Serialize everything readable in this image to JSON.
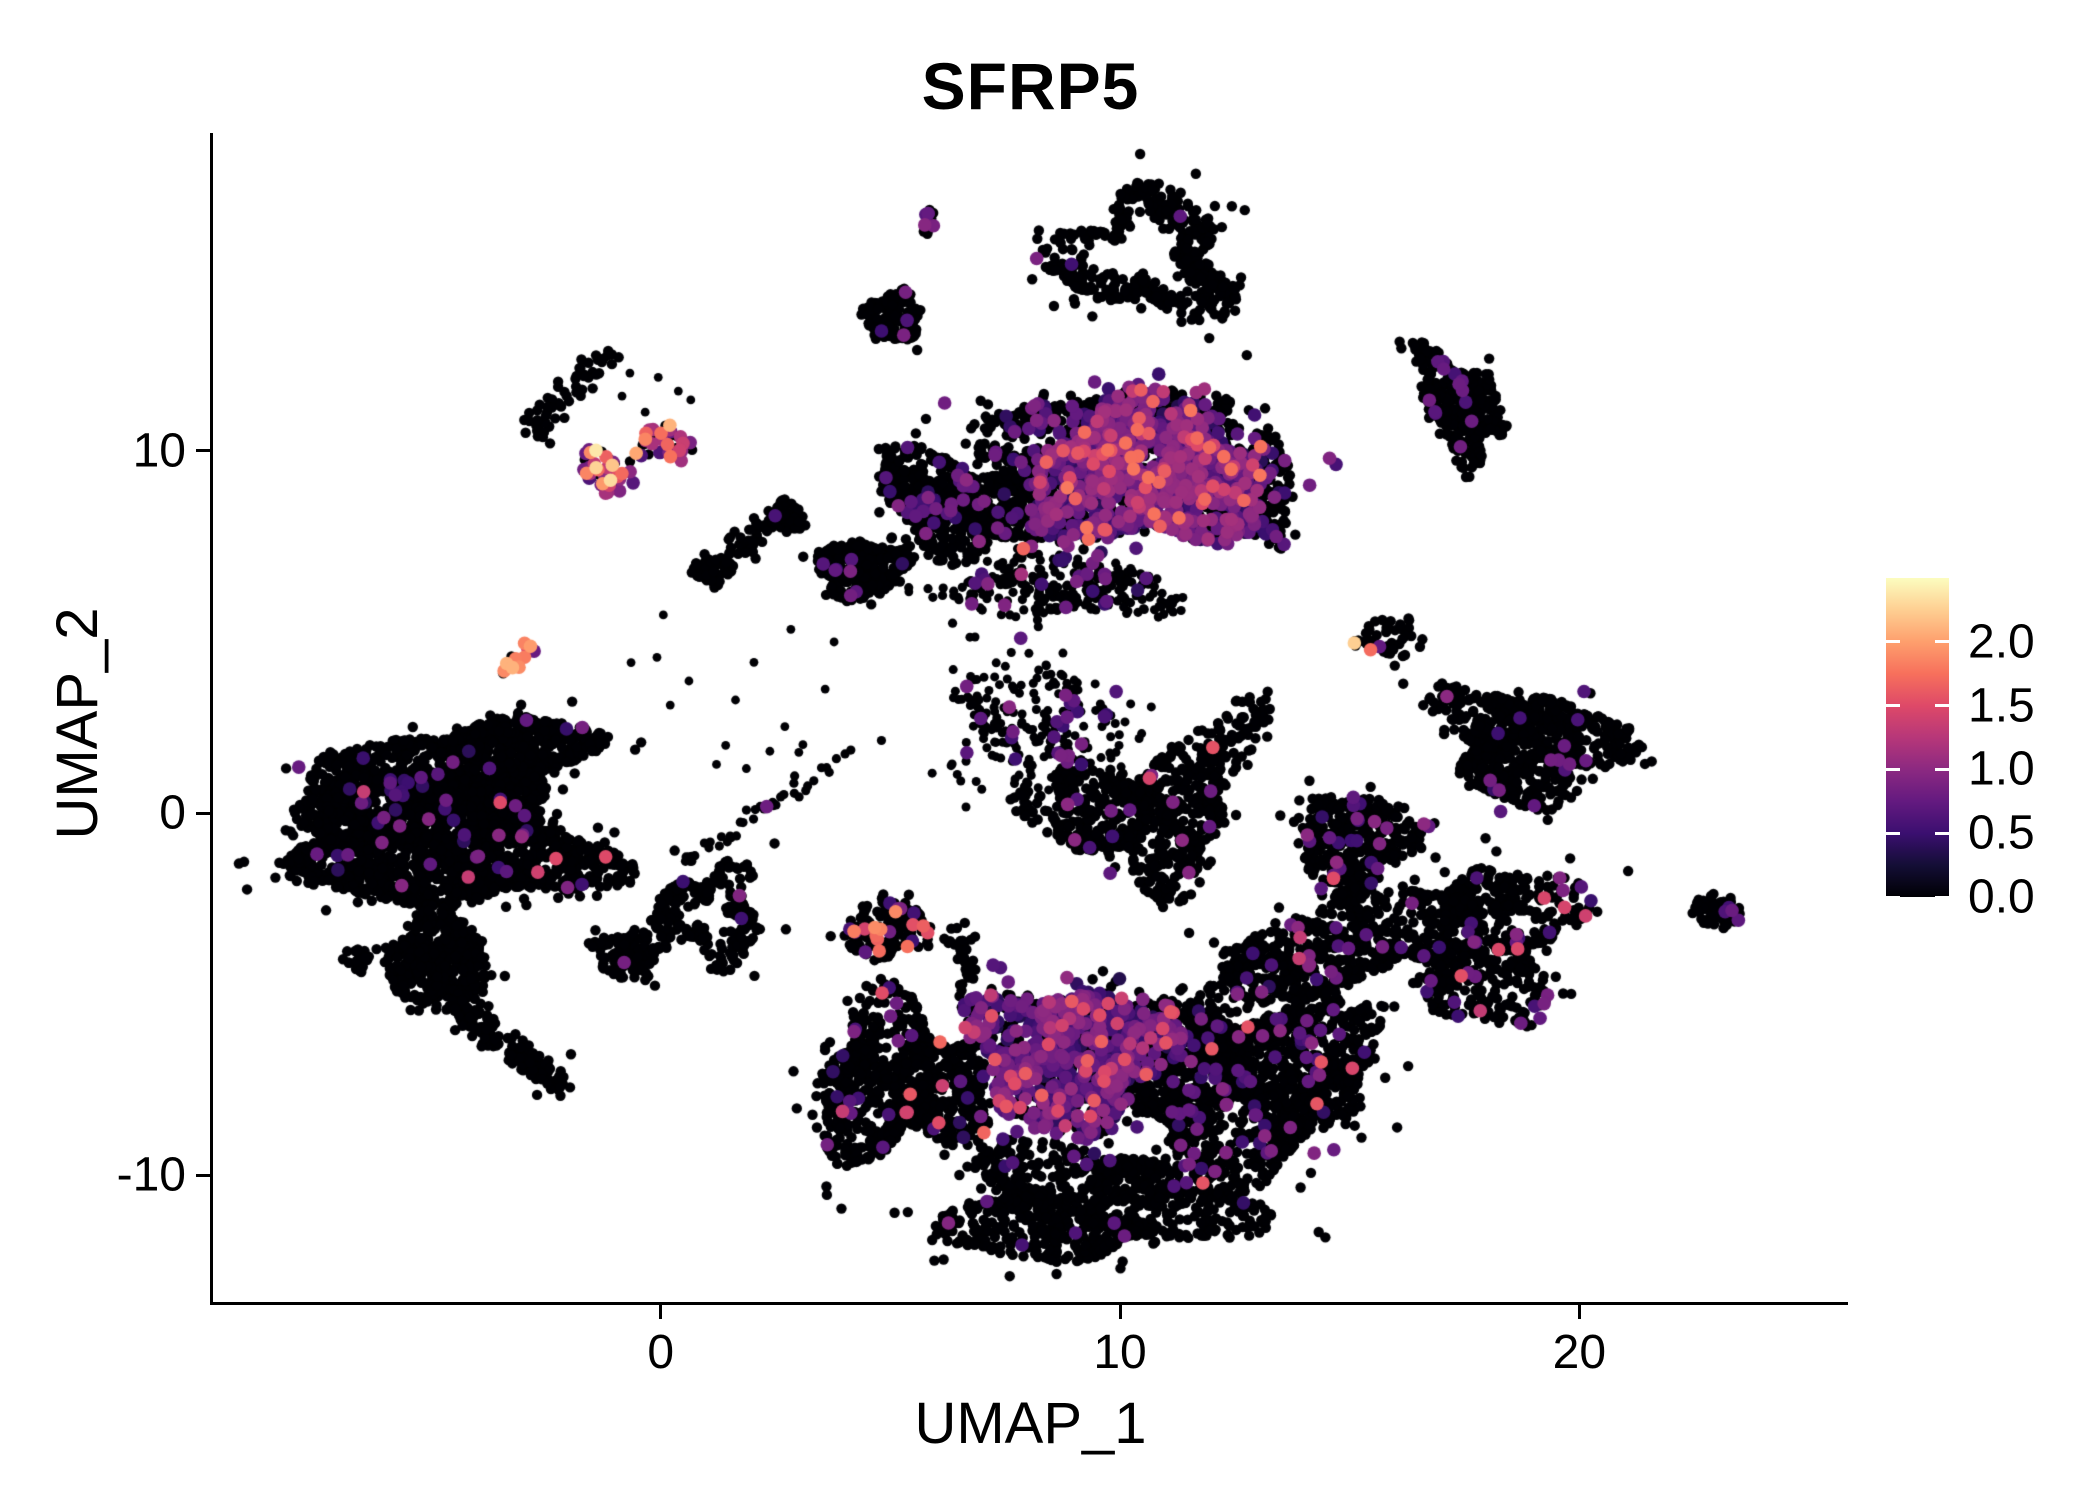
{
  "chart_data": {
    "type": "scatter",
    "subtype": "umap-feature-plot",
    "title": "SFRP5",
    "xlabel": "UMAP_1",
    "ylabel": "UMAP_2",
    "xlim": [
      -9.75,
      25.85
    ],
    "ylim": [
      -13.49,
      18.76
    ],
    "xticks": [
      0,
      10,
      20
    ],
    "xtick_labels": [
      "0",
      "10",
      "20"
    ],
    "yticks": [
      -10,
      0,
      10
    ],
    "ytick_labels": [
      "-10",
      "0",
      "10"
    ],
    "grid": false,
    "legend": {
      "position": "right",
      "vmin": 0.0,
      "vmax": 2.5,
      "ticks": [
        0.0,
        0.5,
        1.0,
        1.5,
        2.0
      ],
      "labels": [
        "0.0",
        "0.5",
        "1.0",
        "1.5",
        "2.0"
      ]
    },
    "palette": {
      "name": "magma",
      "stops": [
        "#000004",
        "#140e36",
        "#3b0f70",
        "#641a80",
        "#8c2981",
        "#b73779",
        "#de4968",
        "#f7705c",
        "#fe9f6d",
        "#fecf92",
        "#fcfdbf"
      ]
    },
    "point_style": {
      "base_radius": 5.2,
      "expressing_radius": 6.8
    },
    "seed": 7,
    "clusters": [
      {
        "id": "tiny-top",
        "shape": "blob",
        "cx": 5.85,
        "cy": 16.3,
        "rx": 0.18,
        "ry": 0.38,
        "n": 14,
        "expr": {
          "pmid": 0.2,
          "mid": [
            0.6,
            1.0
          ]
        }
      },
      {
        "id": "manta-ring",
        "shape": "ring",
        "cx": 10.5,
        "cy": 15.4,
        "rx": 1.8,
        "ry": 1.6,
        "rin": 0.45,
        "n": 430,
        "lump": [
          0.28,
          0.18
        ],
        "expr": {
          "pmid": 0.008,
          "mid": [
            0.5,
            0.9
          ]
        }
      },
      {
        "id": "manta-tail",
        "shape": "streak",
        "p1": [
          11.3,
          15.1
        ],
        "p2": [
          12.5,
          14.2
        ],
        "w": 0.22,
        "n": 70,
        "expr": {
          "pmid": 0.01,
          "mid": [
            0.5,
            0.9
          ]
        }
      },
      {
        "id": "small-c",
        "shape": "blob",
        "cx": 5.08,
        "cy": 13.7,
        "rx": 0.62,
        "ry": 0.72,
        "n": 135,
        "expr": {
          "pmid": 0.028,
          "mid": [
            0.5,
            0.95
          ]
        }
      },
      {
        "id": "right-top",
        "shape": "blob",
        "cx": 17.4,
        "cy": 11.3,
        "rx": 0.78,
        "ry": 1.5,
        "angle": 22,
        "n": 380,
        "lump": [
          0.25,
          0.18
        ],
        "expr": {
          "pmid": 0.03,
          "mid": [
            0.45,
            0.9
          ]
        }
      },
      {
        "id": "pink-a",
        "shape": "blob",
        "cx": -1.15,
        "cy": 9.5,
        "rx": 0.55,
        "ry": 0.62,
        "n": 42,
        "expr": {
          "pmid": 0.3,
          "mid": [
            0.6,
            1.2
          ],
          "phot": 0.4,
          "hot": [
            1.3,
            2.45
          ]
        }
      },
      {
        "id": "pink-b",
        "shape": "blob",
        "cx": 0.1,
        "cy": 10.2,
        "rx": 0.6,
        "ry": 0.5,
        "n": 36,
        "expr": {
          "pmid": 0.3,
          "mid": [
            0.6,
            1.2
          ],
          "phot": 0.38,
          "hot": [
            1.3,
            2.2
          ]
        }
      },
      {
        "id": "comet-streak",
        "shape": "streak",
        "p1": [
          -2.8,
          10.4
        ],
        "p2": [
          -1.2,
          12.7
        ],
        "w": 0.18,
        "n": 65,
        "expr": {}
      },
      {
        "id": "dumbbell-a",
        "shape": "blob",
        "cx": 1.15,
        "cy": 6.7,
        "rx": 0.4,
        "ry": 0.38,
        "n": 60,
        "expr": {}
      },
      {
        "id": "dumbbell-bar",
        "shape": "streak",
        "p1": [
          1.3,
          6.9
        ],
        "p2": [
          2.6,
          8.1
        ],
        "w": 0.2,
        "n": 45,
        "expr": {
          "pmid": 0.02,
          "mid": [
            0.5,
            0.9
          ]
        }
      },
      {
        "id": "dumbbell-b",
        "shape": "blob",
        "cx": 2.75,
        "cy": 8.2,
        "rx": 0.45,
        "ry": 0.4,
        "n": 65,
        "expr": {
          "pmid": 0.01,
          "mid": [
            0.5,
            0.9
          ]
        }
      },
      {
        "id": "central-head-core",
        "shape": "blob",
        "cx": 10.6,
        "cy": 9.3,
        "rx": 2.55,
        "ry": 1.95,
        "n": 1550,
        "lump": [
          0.2,
          0.12
        ],
        "expr": {
          "pmid": 0.49,
          "mid": [
            0.35,
            1.15
          ],
          "phot": 0.04,
          "hot": [
            1.25,
            1.8
          ]
        }
      },
      {
        "id": "central-head-rim",
        "shape": "blob",
        "cx": 10.0,
        "cy": 10.8,
        "rx": 2.9,
        "ry": 0.7,
        "n": 360,
        "expr": {
          "pmid": 0.18,
          "mid": [
            0.4,
            1.0
          ],
          "phot": 0.005,
          "hot": [
            1.3,
            1.6
          ]
        }
      },
      {
        "id": "central-left-wing",
        "shape": "blob",
        "cx": 6.6,
        "cy": 8.5,
        "rx": 2.0,
        "ry": 1.25,
        "angle": -20,
        "n": 720,
        "lump": [
          0.22,
          0.15
        ],
        "expr": {
          "pmid": 0.06,
          "mid": [
            0.4,
            1.0
          ]
        }
      },
      {
        "id": "central-wing-tip",
        "shape": "blob",
        "cx": 4.35,
        "cy": 6.75,
        "rx": 1.0,
        "ry": 0.8,
        "n": 270,
        "expr": {
          "pmid": 0.02,
          "mid": [
            0.4,
            0.9
          ]
        }
      },
      {
        "id": "central-head-right",
        "shape": "blob",
        "cx": 13.05,
        "cy": 8.9,
        "rx": 0.7,
        "ry": 1.5,
        "n": 230,
        "expr": {
          "pmid": 0.14,
          "mid": [
            0.4,
            1.05
          ],
          "phot": 0.005,
          "hot": [
            1.3,
            1.6
          ]
        }
      },
      {
        "id": "central-streak-above",
        "shape": "streak",
        "p1": [
          6.8,
          10.0
        ],
        "p2": [
          8.35,
          9.7
        ],
        "w": 0.18,
        "n": 46,
        "expr": {
          "pmid": 0.08,
          "mid": [
            0.5,
            1.0
          ]
        }
      },
      {
        "id": "central-bottom-fringe",
        "shape": "blob",
        "cx": 8.7,
        "cy": 6.2,
        "rx": 2.4,
        "ry": 0.8,
        "n": 300,
        "size": 4.6,
        "fray": 0.25,
        "expr": {
          "pmid": 0.1,
          "mid": [
            0.4,
            1.0
          ]
        }
      },
      {
        "id": "sparse-below",
        "shape": "blob",
        "cx": 8.2,
        "cy": 2.3,
        "rx": 1.9,
        "ry": 1.7,
        "n": 240,
        "size": 4.5,
        "fray": 0.3,
        "expr": {
          "pmid": 0.1,
          "mid": [
            0.45,
            1.0
          ],
          "phot": 0.004,
          "hot": [
            1.3,
            1.5
          ]
        }
      },
      {
        "id": "sparse-chain",
        "shape": "streak",
        "p1": [
          7.8,
          0.6
        ],
        "p2": [
          9.9,
          -1.2
        ],
        "w": 0.25,
        "n": 60,
        "expr": {
          "pmid": 0.02,
          "mid": [
            0.5,
            0.9
          ]
        }
      },
      {
        "id": "swan-main",
        "shape": "blob",
        "cx": 10.6,
        "cy": -0.1,
        "rx": 1.9,
        "ry": 1.7,
        "n": 580,
        "lump": [
          0.3,
          0.2
        ],
        "expr": {
          "pmid": 0.03,
          "mid": [
            0.45,
            1.0
          ],
          "phot": 0.005,
          "hot": [
            1.35,
            1.6
          ]
        }
      },
      {
        "id": "swan-neck",
        "shape": "streak",
        "p1": [
          12.0,
          1.4
        ],
        "p2": [
          13.2,
          3.1
        ],
        "w": 0.3,
        "n": 75,
        "expr": {
          "pmid": 0.01,
          "mid": [
            0.5,
            0.9
          ]
        }
      },
      {
        "id": "cream-cluster",
        "shape": "blob",
        "cx": 15.9,
        "cy": 4.85,
        "rx": 0.68,
        "ry": 0.55,
        "n": 46,
        "expr": {
          "pmid": 0.06,
          "mid": [
            0.5,
            1.0
          ],
          "phot": 0.05,
          "hot": [
            1.4,
            2.45
          ]
        }
      },
      {
        "id": "fish-right",
        "shape": "blob",
        "cx": 18.9,
        "cy": 1.9,
        "rx": 1.9,
        "ry": 1.5,
        "angle": -15,
        "n": 760,
        "lump": [
          0.25,
          0.15
        ],
        "expr": {
          "pmid": 0.028,
          "mid": [
            0.45,
            1.0
          ]
        }
      },
      {
        "id": "mid-bottom-c",
        "shape": "blob",
        "cx": 15.1,
        "cy": -0.75,
        "rx": 1.25,
        "ry": 1.3,
        "n": 390,
        "expr": {
          "pmid": 0.05,
          "mid": [
            0.45,
            1.05
          ],
          "phot": 0.005,
          "hot": [
            1.35,
            1.6
          ]
        }
      },
      {
        "id": "mid-bottom-trail",
        "shape": "streak",
        "p1": [
          14.8,
          -2.1
        ],
        "p2": [
          15.4,
          -3.4
        ],
        "w": 0.2,
        "n": 48,
        "expr": {}
      },
      {
        "id": "right-bottom",
        "shape": "blob",
        "cx": 17.8,
        "cy": -3.5,
        "rx": 2.0,
        "ry": 2.1,
        "n": 720,
        "lump": [
          0.28,
          0.18
        ],
        "expr": {
          "pmid": 0.04,
          "mid": [
            0.45,
            1.0
          ],
          "phot": 0.006,
          "hot": [
            1.3,
            1.6
          ]
        }
      },
      {
        "id": "far-right-blob",
        "shape": "blob",
        "cx": 23.0,
        "cy": -2.7,
        "rx": 0.55,
        "ry": 0.5,
        "n": 56,
        "expr": {
          "pmid": 0.06,
          "mid": [
            0.5,
            0.95
          ]
        }
      },
      {
        "id": "left-giant-upper",
        "shape": "blob",
        "cx": -4.0,
        "cy": 1.3,
        "rx": 2.45,
        "ry": 1.25,
        "angle": 12,
        "n": 1150,
        "lump": [
          0.2,
          0.14
        ],
        "expr": {
          "pmid": 0.012,
          "mid": [
            0.4,
            1.0
          ],
          "phot": 0.002,
          "hot": [
            1.3,
            1.55
          ]
        }
      },
      {
        "id": "left-giant-main",
        "shape": "blob",
        "cx": -4.7,
        "cy": -0.9,
        "rx": 3.2,
        "ry": 1.7,
        "angle": -6,
        "n": 1750,
        "lump": [
          0.2,
          0.14
        ],
        "expr": {
          "pmid": 0.018,
          "mid": [
            0.4,
            1.05
          ],
          "phot": 0.004,
          "hot": [
            1.3,
            1.6
          ]
        }
      },
      {
        "id": "left-giant-west",
        "shape": "blob",
        "cx": -7.2,
        "cy": 0.35,
        "rx": 0.6,
        "ry": 1.3,
        "n": 190,
        "expr": {}
      },
      {
        "id": "left-giant-leg",
        "shape": "blob",
        "cx": -4.85,
        "cy": -4.05,
        "rx": 1.1,
        "ry": 1.25,
        "n": 470,
        "fray": 0.12,
        "expr": {}
      },
      {
        "id": "left-tail-1",
        "shape": "streak",
        "p1": [
          -4.5,
          -5.2
        ],
        "p2": [
          -3.5,
          -6.4
        ],
        "w": 0.16,
        "n": 85,
        "expr": {}
      },
      {
        "id": "left-tail-2",
        "shape": "streak",
        "p1": [
          -3.2,
          -6.5
        ],
        "p2": [
          -2.25,
          -7.55
        ],
        "w": 0.2,
        "n": 75,
        "expr": {}
      },
      {
        "id": "left-tiny-blob",
        "shape": "blob",
        "cx": -6.6,
        "cy": -4.05,
        "rx": 0.3,
        "ry": 0.34,
        "n": 24,
        "expr": {}
      },
      {
        "id": "triangle-small",
        "shape": "blob",
        "cx": -0.7,
        "cy": -3.9,
        "rx": 0.75,
        "ry": 0.68,
        "n": 115,
        "expr": {
          "pmid": 0.012,
          "mid": [
            0.5,
            0.9
          ]
        }
      },
      {
        "id": "pink-streak-left",
        "shape": "streak",
        "p1": [
          -3.4,
          3.9
        ],
        "p2": [
          -2.7,
          4.8
        ],
        "w": 0.16,
        "n": 14,
        "expr": {
          "pmid": 0.25,
          "mid": [
            0.5,
            1.0
          ],
          "phot": 0.5,
          "hot": [
            1.4,
            2.2
          ]
        }
      },
      {
        "id": "ring-bottom-center",
        "shape": "ring",
        "cx": 1.1,
        "cy": -2.8,
        "rx": 1.1,
        "ry": 1.25,
        "rin": 0.35,
        "n": 240,
        "lump": [
          0.25,
          0.18
        ],
        "expr": {
          "pmid": 0.015,
          "mid": [
            0.5,
            1.0
          ]
        }
      },
      {
        "id": "bridge-diagonal",
        "shape": "streak",
        "p1": [
          0.6,
          -1.35
        ],
        "p2": [
          4.65,
          2.2
        ],
        "w": 0.12,
        "n": 44,
        "size": 4.6,
        "expr": {
          "pmid": 0.03,
          "mid": [
            0.5,
            0.9
          ]
        }
      },
      {
        "id": "mid-bright",
        "shape": "blob",
        "cx": 4.95,
        "cy": -3.2,
        "rx": 0.95,
        "ry": 0.8,
        "n": 150,
        "expr": {
          "pmid": 0.05,
          "mid": [
            0.5,
            1.0
          ],
          "phot": 0.05,
          "hot": [
            1.4,
            2.1
          ]
        }
      },
      {
        "id": "bottom-purple-region",
        "shape": "blob",
        "cx": 8.9,
        "cy": -6.7,
        "rx": 2.1,
        "ry": 1.95,
        "n": 1050,
        "lump": [
          0.2,
          0.12
        ],
        "expr": {
          "pmid": 0.52,
          "mid": [
            0.3,
            1.05
          ],
          "phot": 0.04,
          "hot": [
            1.2,
            1.65
          ]
        }
      },
      {
        "id": "bottom-left-wing",
        "shape": "blob",
        "cx": 5.2,
        "cy": -7.4,
        "rx": 1.8,
        "ry": 2.1,
        "n": 820,
        "lump": [
          0.25,
          0.16
        ],
        "expr": {
          "pmid": 0.03,
          "mid": [
            0.4,
            1.0
          ],
          "phot": 0.01,
          "hot": [
            1.3,
            1.7
          ]
        }
      },
      {
        "id": "bottom-right-mass",
        "shape": "blob",
        "cx": 12.5,
        "cy": -7.4,
        "rx": 3.0,
        "ry": 2.35,
        "n": 1550,
        "lump": [
          0.22,
          0.15
        ],
        "expr": {
          "pmid": 0.055,
          "mid": [
            0.4,
            1.0
          ],
          "phot": 0.004,
          "hot": [
            1.3,
            1.6
          ]
        }
      },
      {
        "id": "bottom-tail",
        "shape": "blob",
        "cx": 9.3,
        "cy": -10.8,
        "rx": 3.1,
        "ry": 1.5,
        "n": 900,
        "lump": [
          0.25,
          0.15
        ],
        "expr": {
          "pmid": 0.012,
          "mid": [
            0.4,
            0.95
          ]
        }
      },
      {
        "id": "bottom-right-arm",
        "shape": "blob",
        "cx": 13.8,
        "cy": -4.2,
        "rx": 2.1,
        "ry": 1.1,
        "angle": 20,
        "n": 430,
        "expr": {
          "pmid": 0.04,
          "mid": [
            0.4,
            1.0
          ],
          "phot": 0.007,
          "hot": [
            1.3,
            1.6
          ]
        }
      },
      {
        "id": "bottom-chainlet",
        "shape": "streak",
        "p1": [
          6.5,
          -3.2
        ],
        "p2": [
          6.8,
          -4.75
        ],
        "w": 0.2,
        "n": 32,
        "expr": {}
      },
      {
        "id": "sprinkle-mid",
        "shape": "blob",
        "cx": 2.5,
        "cy": 3.5,
        "rx": 2.5,
        "ry": 2.5,
        "n": 18,
        "size": 4.4,
        "fray": 0.6,
        "expr": {}
      },
      {
        "id": "sprinkle-top",
        "shape": "blob",
        "cx": 0.3,
        "cy": 11.5,
        "rx": 1.2,
        "ry": 0.8,
        "n": 6,
        "size": 4.4,
        "fray": 0.5,
        "expr": {}
      }
    ]
  }
}
